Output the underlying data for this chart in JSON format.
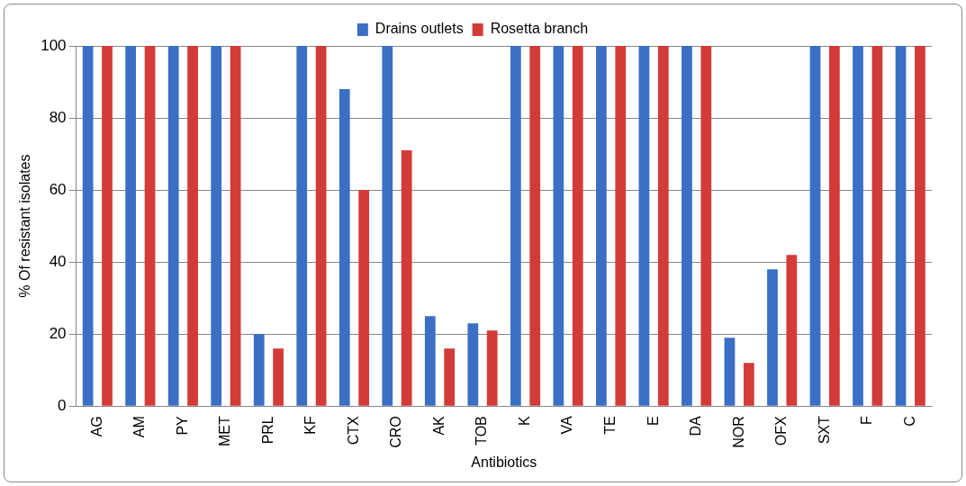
{
  "chart_data": {
    "type": "bar",
    "xlabel": "Antibiotics",
    "ylabel": "% Of resistant isolates",
    "categories": [
      "AG",
      "AM",
      "PY",
      "MET",
      "PRL",
      "KF",
      "CTX",
      "CRO",
      "AK",
      "TOB",
      "K",
      "VA",
      "TE",
      "E",
      "DA",
      "NOR",
      "OFX",
      "SXT",
      "F",
      "C"
    ],
    "series": [
      {
        "name": "Drains outlets",
        "color": "#3b6fc6",
        "values": [
          100,
          100,
          100,
          100,
          20,
          100,
          88,
          100,
          25,
          23,
          100,
          100,
          100,
          100,
          100,
          19,
          38,
          100,
          100,
          100
        ]
      },
      {
        "name": "Rosetta branch",
        "color": "#d33b38",
        "values": [
          100,
          100,
          100,
          100,
          16,
          100,
          60,
          71,
          16,
          21,
          100,
          100,
          100,
          100,
          100,
          12,
          42,
          100,
          100,
          100
        ]
      }
    ],
    "ylim": [
      0,
      100
    ],
    "yticks": [
      0,
      20,
      40,
      60,
      80,
      100
    ],
    "grid": "y",
    "legend": "top"
  }
}
